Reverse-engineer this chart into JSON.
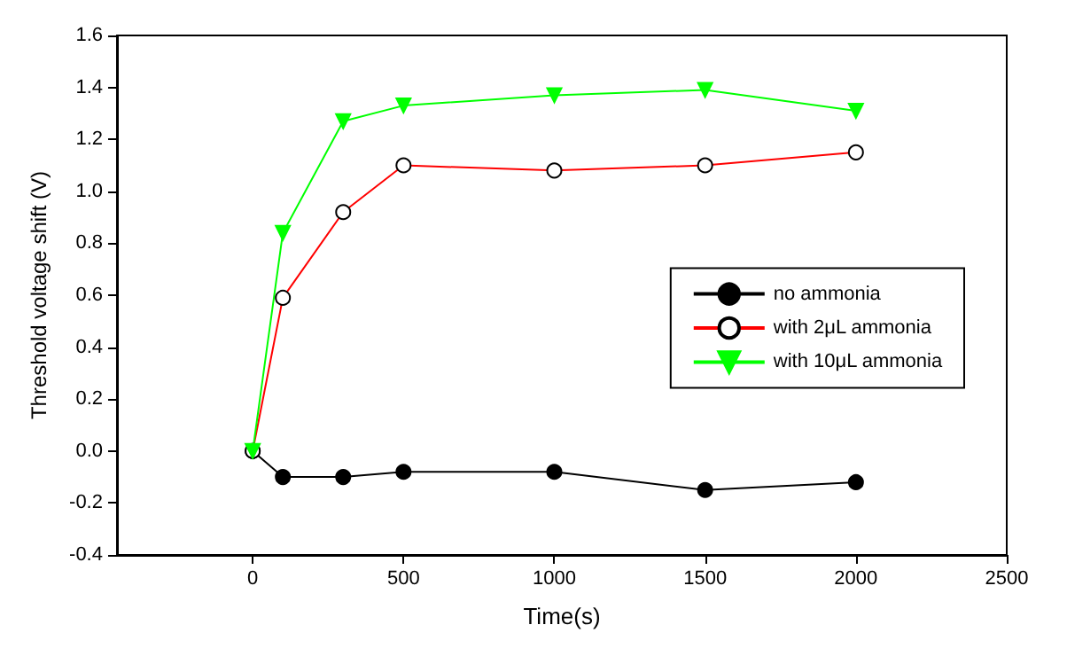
{
  "chart_data": {
    "type": "line",
    "xlabel": "Time(s)",
    "ylabel": "Threshold voltage shift (V)",
    "xlim": [
      -450,
      2500
    ],
    "xticks": [
      0,
      500,
      1000,
      1500,
      2000,
      2500
    ],
    "ylim": [
      -0.4,
      1.6
    ],
    "yticks": [
      {
        "value": -0.4,
        "label": "-0.4"
      },
      {
        "value": -0.2,
        "label": "-0.2"
      },
      {
        "value": 0,
        "label": "0.0"
      },
      {
        "value": 0.2,
        "label": "0.2"
      },
      {
        "value": 0.4,
        "label": "0.4"
      },
      {
        "value": 0.6,
        "label": "0.6"
      },
      {
        "value": 0.8,
        "label": "0.8"
      },
      {
        "value": 1,
        "label": "1.0"
      },
      {
        "value": 1.2,
        "label": "1.2"
      },
      {
        "value": 1.4,
        "label": "1.4"
      },
      {
        "value": 1.6,
        "label": "1.6"
      }
    ],
    "x": [
      0,
      100,
      300,
      500,
      1000,
      1500,
      2000
    ],
    "grid": false,
    "legend": "right",
    "line_style": "solid",
    "series": [
      {
        "name": "no ammonia",
        "color": "#000000",
        "marker": "circle",
        "values": [
          0,
          -0.1,
          -0.1,
          -0.08,
          -0.08,
          -0.15,
          -0.12
        ]
      },
      {
        "name": "with 2μL ammonia",
        "color": "#ff0000",
        "marker": "open-circle",
        "values": [
          0,
          0.59,
          0.92,
          1.1,
          1.08,
          1.1,
          1.15
        ]
      },
      {
        "name": "with 10μL ammonia",
        "color": "#00ff00",
        "marker": "triangle-down",
        "values": [
          0,
          0.84,
          1.27,
          1.33,
          1.37,
          1.39,
          1.31
        ]
      }
    ]
  }
}
